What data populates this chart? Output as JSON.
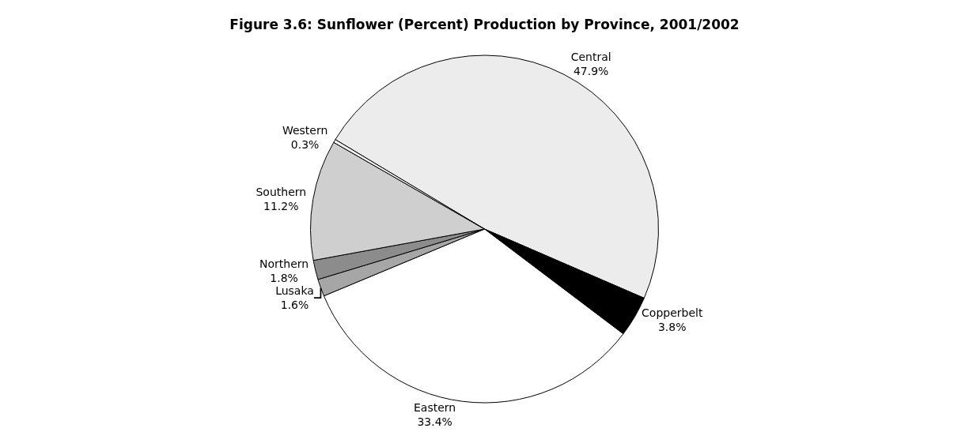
{
  "chart_data": {
    "type": "pie",
    "title": "Figure 3.6: Sunflower (Percent) Production by Province, 2001/2002",
    "categories": [
      "Central",
      "Copperbelt",
      "Eastern",
      "Lusaka",
      "Northern",
      "Southern",
      "Western"
    ],
    "values": [
      47.9,
      3.8,
      33.4,
      1.6,
      1.8,
      11.2,
      0.3
    ],
    "value_labels": [
      "47.9%",
      "3.8%",
      "33.4%",
      "1.6%",
      "1.8%",
      "11.2%",
      "0.3%"
    ],
    "colors": [
      "#ececec",
      "#000000",
      "#ffffff",
      "#a6a6a6",
      "#8c8c8c",
      "#cfcfcf",
      "#f2f2f2"
    ],
    "legend": false
  }
}
